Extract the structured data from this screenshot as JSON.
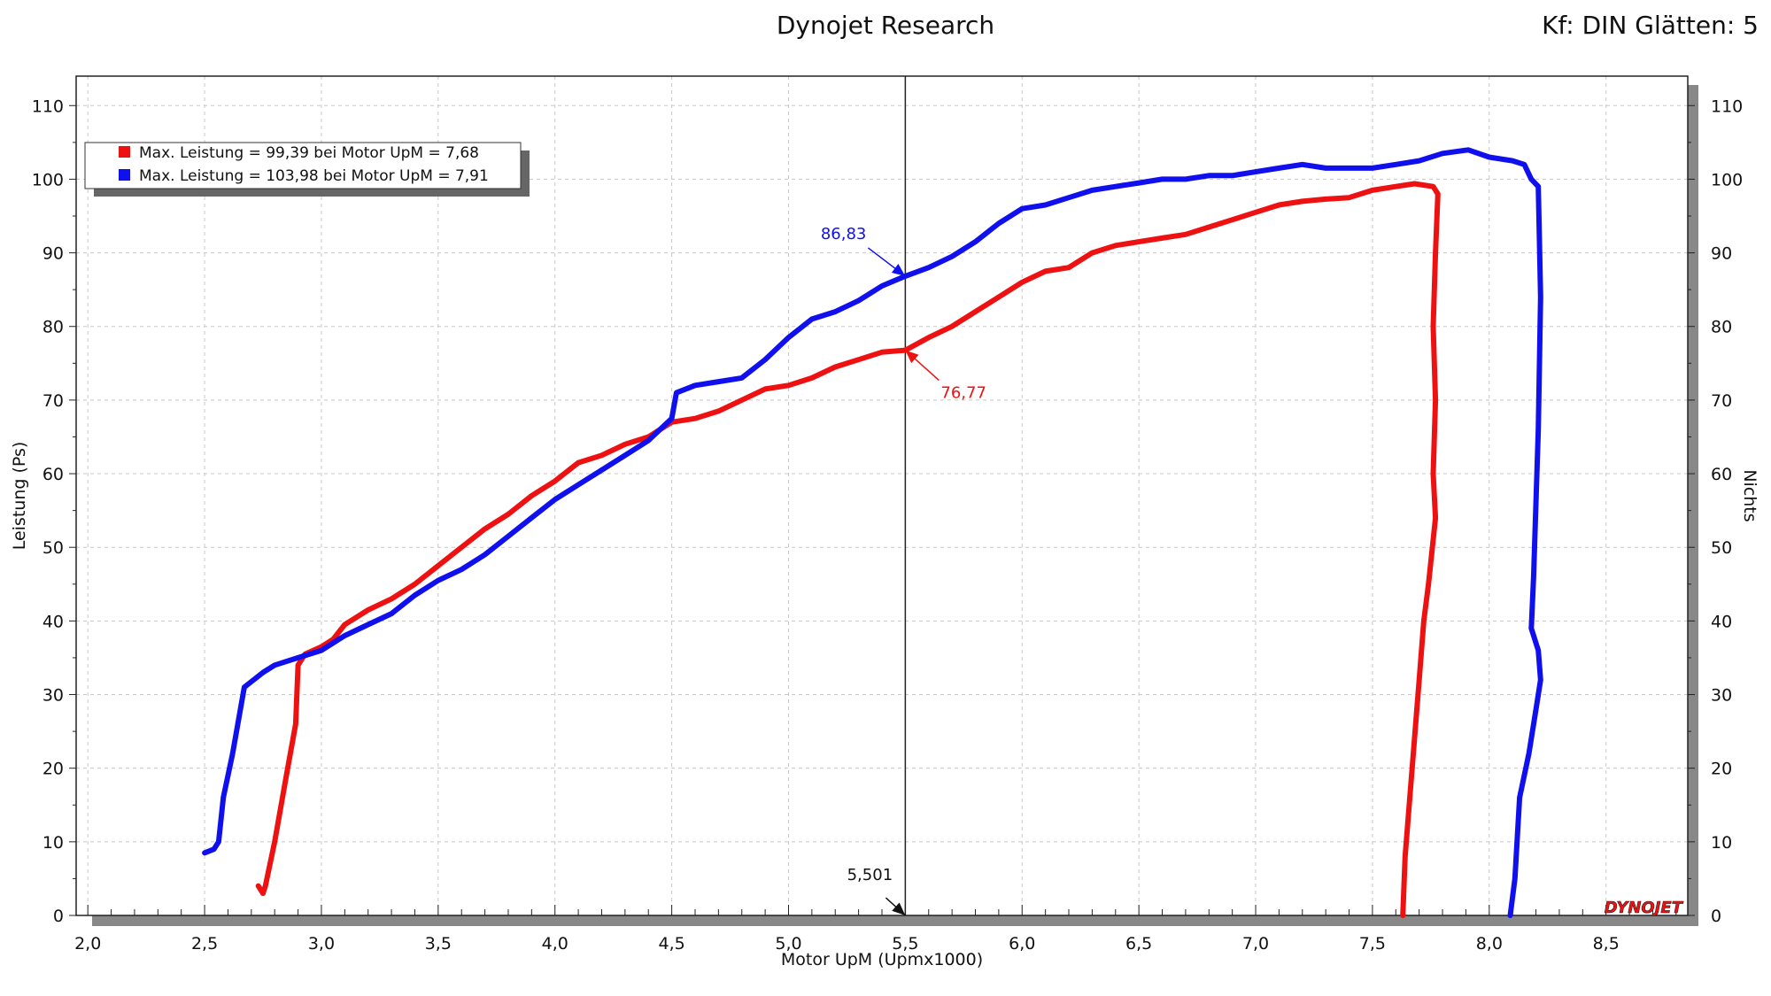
{
  "header": {
    "title": "Dynojet Research",
    "corner": "Kf: DIN Glätten: 5"
  },
  "brand": "DYNOJET",
  "colors": {
    "red": "#ee1111",
    "blue": "#1010ee",
    "grid": "#c8c8c8"
  },
  "legend": [
    {
      "text": "Max. Leistung = 99,39 bei Motor UpM = 7,68",
      "color": "#ee1111"
    },
    {
      "text": "Max. Leistung = 103,98 bei Motor UpM = 7,91",
      "color": "#1010ee"
    }
  ],
  "chart_data": {
    "type": "line",
    "xlabel": "Motor UpM (Upmx1000)",
    "ylabel": "Leistung (Ps)",
    "y2label": "Nichts",
    "xlim": [
      1.95,
      8.85
    ],
    "ylim": [
      0,
      114
    ],
    "x_ticks": [
      "2,0",
      "2,5",
      "3,0",
      "3,5",
      "4,0",
      "4,5",
      "5,0",
      "5,5",
      "6,0",
      "6,5",
      "7,0",
      "7,5",
      "8,0",
      "8,5"
    ],
    "y_ticks": [
      "0",
      "10",
      "20",
      "30",
      "40",
      "50",
      "60",
      "70",
      "80",
      "90",
      "100",
      "110"
    ],
    "grid": true,
    "cursor": {
      "x": 5.5,
      "x_label": "5,501"
    },
    "annotations": [
      {
        "series": "blue",
        "x": 5.5,
        "y": 86.83,
        "text": "86,83"
      },
      {
        "series": "red",
        "x": 5.5,
        "y": 76.77,
        "text": "76,77"
      }
    ],
    "series": [
      {
        "key": "red",
        "color": "#ee1111",
        "points": [
          [
            2.73,
            4
          ],
          [
            2.75,
            3
          ],
          [
            2.76,
            4
          ],
          [
            2.8,
            10
          ],
          [
            2.85,
            19
          ],
          [
            2.89,
            26
          ],
          [
            2.9,
            34
          ],
          [
            2.93,
            35.5
          ],
          [
            3.0,
            36.5
          ],
          [
            3.05,
            37.5
          ],
          [
            3.1,
            39.5
          ],
          [
            3.2,
            41.5
          ],
          [
            3.3,
            43
          ],
          [
            3.4,
            45
          ],
          [
            3.5,
            47.5
          ],
          [
            3.6,
            50
          ],
          [
            3.7,
            52.5
          ],
          [
            3.8,
            54.5
          ],
          [
            3.9,
            57
          ],
          [
            4.0,
            59
          ],
          [
            4.1,
            61.5
          ],
          [
            4.2,
            62.5
          ],
          [
            4.3,
            64
          ],
          [
            4.4,
            65
          ],
          [
            4.5,
            67
          ],
          [
            4.6,
            67.5
          ],
          [
            4.7,
            68.5
          ],
          [
            4.8,
            70
          ],
          [
            4.9,
            71.5
          ],
          [
            5.0,
            72
          ],
          [
            5.1,
            73
          ],
          [
            5.2,
            74.5
          ],
          [
            5.3,
            75.5
          ],
          [
            5.4,
            76.5
          ],
          [
            5.5,
            76.77
          ],
          [
            5.6,
            78.5
          ],
          [
            5.7,
            80
          ],
          [
            5.8,
            82
          ],
          [
            5.9,
            84
          ],
          [
            6.0,
            86
          ],
          [
            6.1,
            87.5
          ],
          [
            6.2,
            88
          ],
          [
            6.3,
            90
          ],
          [
            6.4,
            91
          ],
          [
            6.5,
            91.5
          ],
          [
            6.6,
            92
          ],
          [
            6.7,
            92.5
          ],
          [
            6.8,
            93.5
          ],
          [
            6.9,
            94.5
          ],
          [
            7.0,
            95.5
          ],
          [
            7.1,
            96.5
          ],
          [
            7.2,
            97
          ],
          [
            7.3,
            97.3
          ],
          [
            7.4,
            97.5
          ],
          [
            7.5,
            98.5
          ],
          [
            7.6,
            99
          ],
          [
            7.68,
            99.39
          ],
          [
            7.76,
            99
          ],
          [
            7.78,
            98
          ],
          [
            7.77,
            90
          ],
          [
            7.76,
            80
          ],
          [
            7.77,
            70
          ],
          [
            7.76,
            60
          ],
          [
            7.77,
            54
          ],
          [
            7.74,
            45
          ],
          [
            7.72,
            40
          ],
          [
            7.7,
            32
          ],
          [
            7.68,
            24
          ],
          [
            7.66,
            16
          ],
          [
            7.64,
            8
          ],
          [
            7.63,
            0
          ]
        ]
      },
      {
        "key": "blue",
        "color": "#1010ee",
        "points": [
          [
            2.5,
            8.5
          ],
          [
            2.54,
            9
          ],
          [
            2.56,
            10
          ],
          [
            2.58,
            16
          ],
          [
            2.62,
            22
          ],
          [
            2.67,
            31
          ],
          [
            2.75,
            33
          ],
          [
            2.8,
            34
          ],
          [
            2.9,
            35
          ],
          [
            3.0,
            36
          ],
          [
            3.05,
            37
          ],
          [
            3.1,
            38
          ],
          [
            3.2,
            39.5
          ],
          [
            3.3,
            41
          ],
          [
            3.4,
            43.5
          ],
          [
            3.5,
            45.5
          ],
          [
            3.6,
            47
          ],
          [
            3.7,
            49
          ],
          [
            3.8,
            51.5
          ],
          [
            3.9,
            54
          ],
          [
            4.0,
            56.5
          ],
          [
            4.1,
            58.5
          ],
          [
            4.2,
            60.5
          ],
          [
            4.3,
            62.5
          ],
          [
            4.4,
            64.5
          ],
          [
            4.5,
            67.5
          ],
          [
            4.52,
            71
          ],
          [
            4.6,
            72
          ],
          [
            4.7,
            72.5
          ],
          [
            4.8,
            73
          ],
          [
            4.9,
            75.5
          ],
          [
            5.0,
            78.5
          ],
          [
            5.1,
            81
          ],
          [
            5.2,
            82
          ],
          [
            5.3,
            83.5
          ],
          [
            5.4,
            85.5
          ],
          [
            5.5,
            86.83
          ],
          [
            5.6,
            88
          ],
          [
            5.7,
            89.5
          ],
          [
            5.8,
            91.5
          ],
          [
            5.9,
            94
          ],
          [
            6.0,
            96
          ],
          [
            6.1,
            96.5
          ],
          [
            6.2,
            97.5
          ],
          [
            6.3,
            98.5
          ],
          [
            6.4,
            99
          ],
          [
            6.5,
            99.5
          ],
          [
            6.6,
            100
          ],
          [
            6.7,
            100
          ],
          [
            6.8,
            100.5
          ],
          [
            6.9,
            100.5
          ],
          [
            7.0,
            101
          ],
          [
            7.1,
            101.5
          ],
          [
            7.2,
            102
          ],
          [
            7.3,
            101.5
          ],
          [
            7.4,
            101.5
          ],
          [
            7.5,
            101.5
          ],
          [
            7.6,
            102
          ],
          [
            7.7,
            102.5
          ],
          [
            7.8,
            103.5
          ],
          [
            7.91,
            103.98
          ],
          [
            8.0,
            103
          ],
          [
            8.1,
            102.5
          ],
          [
            8.15,
            102
          ],
          [
            8.18,
            100
          ],
          [
            8.21,
            99
          ],
          [
            8.22,
            84
          ],
          [
            8.21,
            66
          ],
          [
            8.19,
            46
          ],
          [
            8.18,
            39
          ],
          [
            8.21,
            36
          ],
          [
            8.22,
            32
          ],
          [
            8.2,
            28
          ],
          [
            8.17,
            22
          ],
          [
            8.13,
            16
          ],
          [
            8.11,
            5
          ],
          [
            8.09,
            0
          ]
        ]
      }
    ]
  }
}
